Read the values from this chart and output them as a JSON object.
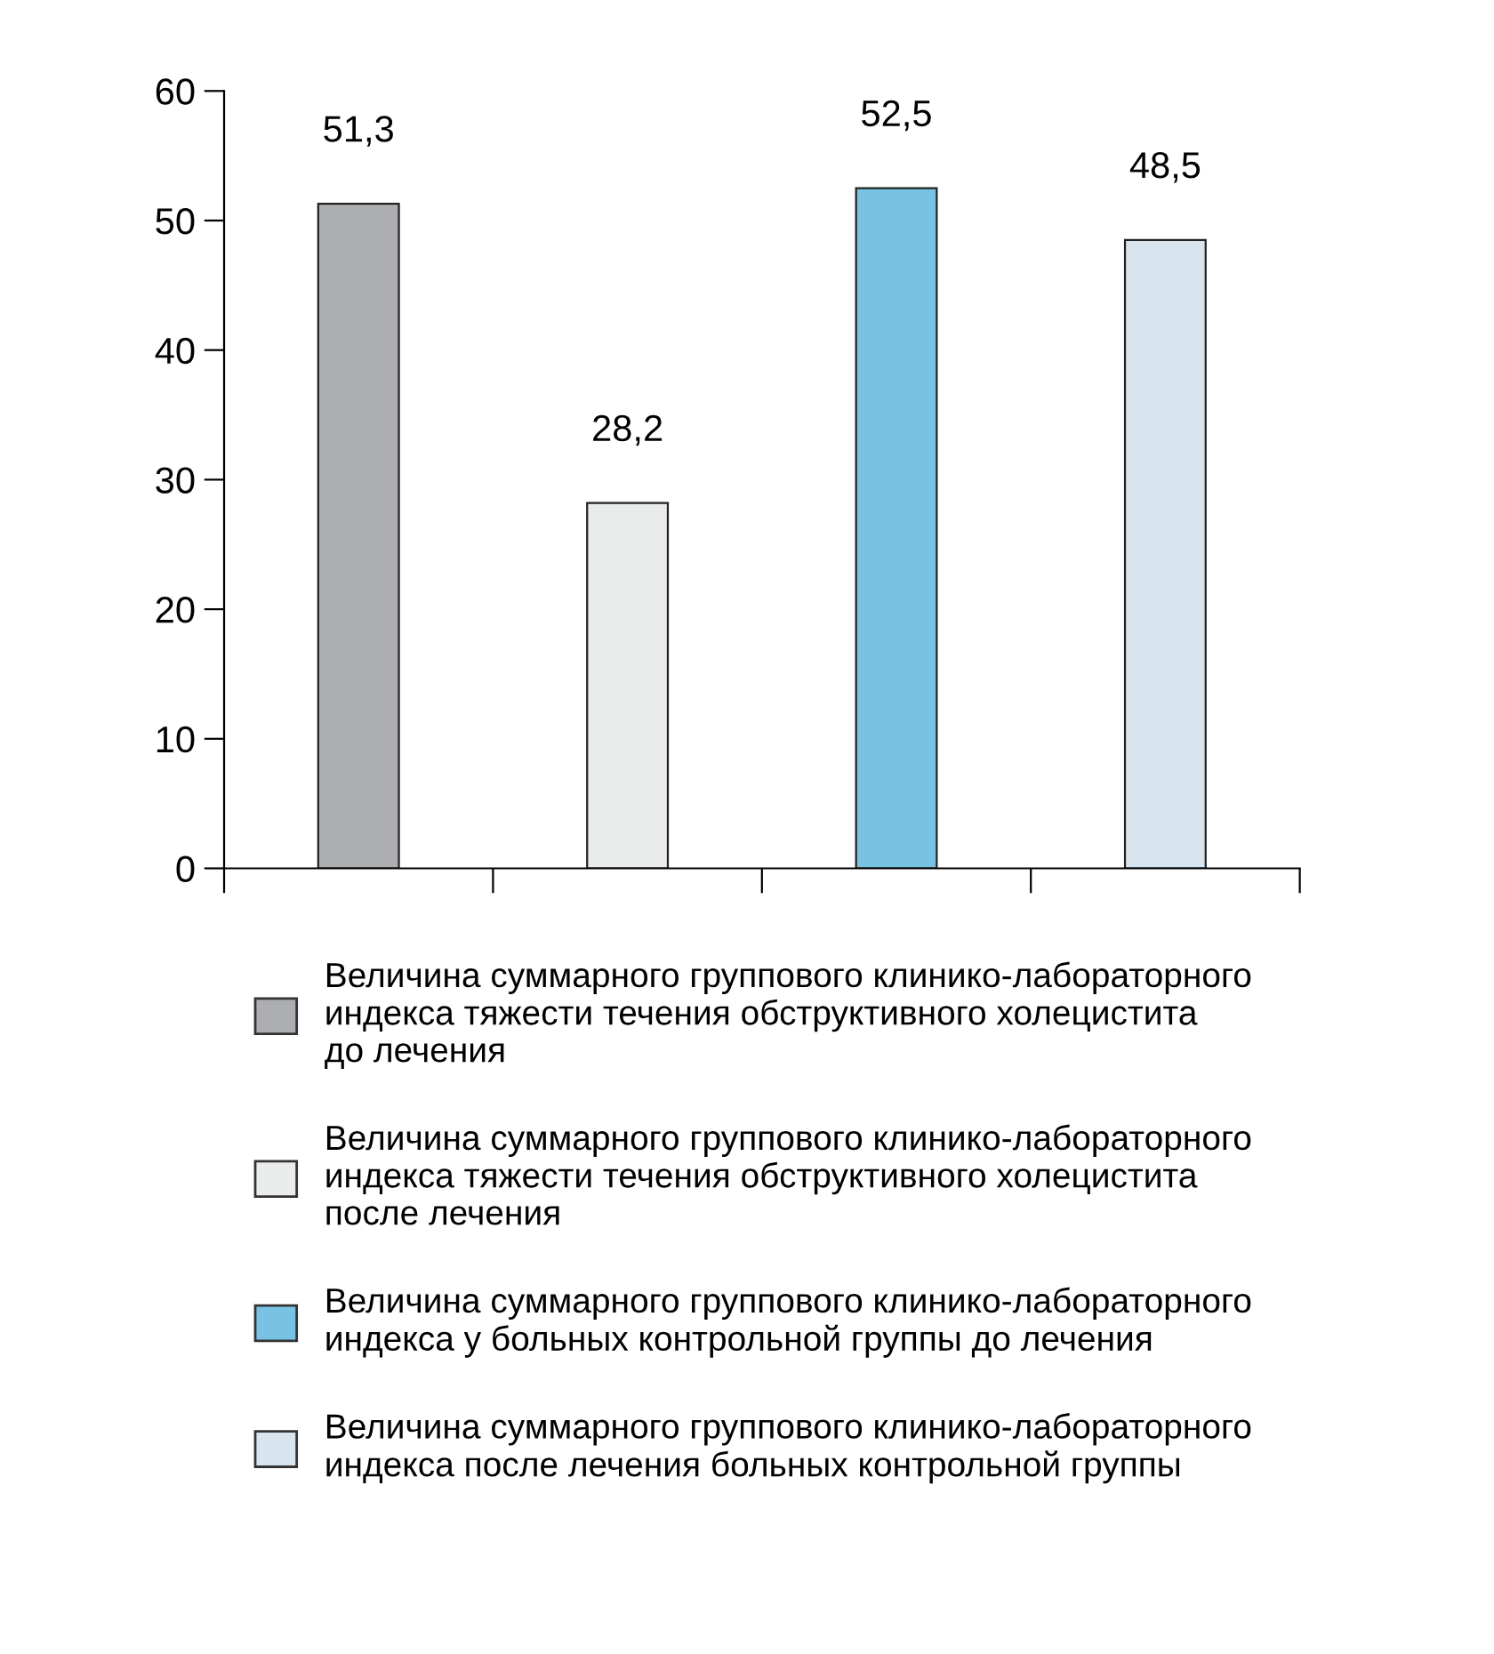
{
  "chart_data": {
    "type": "bar",
    "categories": [
      null,
      null,
      null,
      null
    ],
    "series": [
      {
        "name": "Величина суммарного группового клинико-лабораторного\nиндекса тяжести течения обструктивного холецистита\nдо лечения",
        "color": "#adaeb1",
        "values": [
          51.3,
          null,
          null,
          null
        ],
        "value_labels": [
          "51,3",
          null,
          null,
          null
        ]
      },
      {
        "name": "Величина суммарного группового клинико-лабораторного\nиндекса тяжести течения обструктивного холецистита\nпосле лечения",
        "color": "#eaeceb",
        "values": [
          null,
          28.2,
          null,
          null
        ],
        "value_labels": [
          null,
          "28,2",
          null,
          null
        ]
      },
      {
        "name": "Величина суммарного группового клинико-лабораторного\nиндекса у больных контрольной группы до лечения",
        "color": "#78c3e3",
        "values": [
          null,
          null,
          52.5,
          null
        ],
        "value_labels": [
          null,
          null,
          "52,5",
          null
        ]
      },
      {
        "name": "Величина суммарного группового клинико-лабораторного\nиндекса после лечения больных контрольной группы",
        "color": "#d8e5ee",
        "values": [
          null,
          null,
          null,
          48.5
        ],
        "value_labels": [
          null,
          null,
          null,
          "48,5"
        ]
      }
    ],
    "ylim": [
      0,
      60
    ],
    "yticks": [
      0,
      10,
      20,
      30,
      40,
      50,
      60
    ],
    "tick_labels": "y",
    "grid": false,
    "legend": "bottom"
  }
}
